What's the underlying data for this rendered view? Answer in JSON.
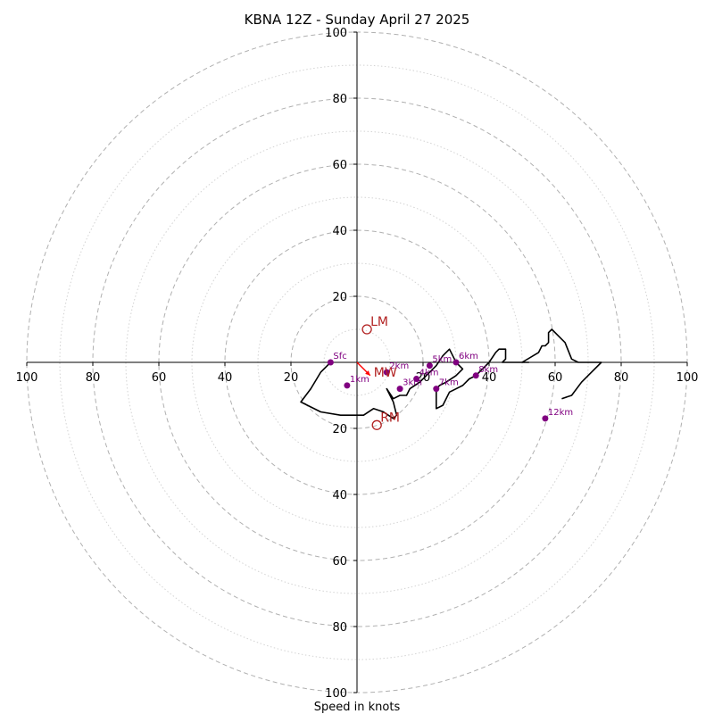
{
  "chart_data": {
    "type": "line",
    "title": "KBNA 12Z - Sunday April 27 2025",
    "xlabel": "Speed in knots",
    "ylabel": "",
    "xlim": [
      -100,
      100
    ],
    "ylim": [
      -100,
      100
    ],
    "grid": true,
    "rings": {
      "major": [
        20,
        40,
        60,
        80,
        100
      ],
      "minor": [
        10,
        30,
        50,
        70,
        90
      ]
    },
    "axis_ticks": {
      "x": [
        {
          "v": -100,
          "label": "100"
        },
        {
          "v": -80,
          "label": "80"
        },
        {
          "v": -60,
          "label": "60"
        },
        {
          "v": -40,
          "label": "40"
        },
        {
          "v": -20,
          "label": "20"
        },
        {
          "v": 20,
          "label": "20"
        },
        {
          "v": 40,
          "label": "40"
        },
        {
          "v": 60,
          "label": "60"
        },
        {
          "v": 80,
          "label": "80"
        },
        {
          "v": 100,
          "label": "100"
        }
      ],
      "y": [
        {
          "v": 100,
          "label": "100"
        },
        {
          "v": 80,
          "label": "80"
        },
        {
          "v": 60,
          "label": "60"
        },
        {
          "v": 40,
          "label": "40"
        },
        {
          "v": 20,
          "label": "20"
        },
        {
          "v": -20,
          "label": "20"
        },
        {
          "v": -40,
          "label": "40"
        },
        {
          "v": -60,
          "label": "60"
        },
        {
          "v": -80,
          "label": "80"
        },
        {
          "v": -100,
          "label": "100"
        }
      ]
    },
    "hodograph": {
      "color": "#000000",
      "points": [
        [
          -8,
          0
        ],
        [
          -11,
          -3
        ],
        [
          -14,
          -8
        ],
        [
          -17,
          -12
        ],
        [
          -15,
          -13
        ],
        [
          -11,
          -15
        ],
        [
          -5,
          -16
        ],
        [
          2,
          -16
        ],
        [
          5,
          -14
        ],
        [
          8,
          -15
        ],
        [
          11,
          -17
        ],
        [
          12,
          -16
        ],
        [
          11,
          -12
        ],
        [
          9,
          -8
        ],
        [
          11,
          -11
        ],
        [
          13,
          -10
        ],
        [
          15,
          -10
        ],
        [
          16,
          -8
        ],
        [
          19,
          -6
        ],
        [
          21,
          -4
        ],
        [
          22,
          -3
        ],
        [
          24,
          -1
        ],
        [
          26,
          2
        ],
        [
          28,
          4
        ],
        [
          30,
          0
        ],
        [
          32,
          -2
        ],
        [
          30,
          -4
        ],
        [
          27,
          -6
        ],
        [
          25,
          -7
        ],
        [
          24,
          -8
        ],
        [
          24,
          -13
        ],
        [
          24,
          -14
        ],
        [
          26,
          -13
        ],
        [
          28,
          -9
        ],
        [
          32,
          -7
        ],
        [
          34,
          -5
        ],
        [
          36,
          -4
        ],
        [
          38,
          -2
        ],
        [
          40,
          0
        ],
        [
          42,
          3
        ],
        [
          43,
          4
        ],
        [
          45,
          4
        ],
        [
          45,
          1
        ],
        [
          44,
          0
        ],
        [
          50,
          0
        ],
        [
          52,
          0
        ],
        [
          50,
          0
        ],
        [
          55,
          3
        ],
        [
          56,
          5
        ],
        [
          57,
          5
        ],
        [
          58,
          6
        ],
        [
          58,
          8
        ],
        [
          58,
          9
        ],
        [
          59,
          10
        ],
        [
          61,
          8
        ],
        [
          63,
          6
        ],
        [
          65,
          1
        ],
        [
          67,
          0
        ],
        [
          74,
          0
        ],
        [
          71,
          -3
        ],
        [
          68,
          -6
        ],
        [
          65,
          -10
        ],
        [
          62,
          -11
        ]
      ]
    },
    "levels": [
      {
        "label": "Sfc",
        "x": -8,
        "y": 0
      },
      {
        "label": "1km",
        "x": -3,
        "y": -7
      },
      {
        "label": "2km",
        "x": 9,
        "y": -3
      },
      {
        "label": "3km",
        "x": 13,
        "y": -8
      },
      {
        "label": "4km",
        "x": 18,
        "y": -5
      },
      {
        "label": "5km",
        "x": 22,
        "y": -1
      },
      {
        "label": "6km",
        "x": 30,
        "y": 0
      },
      {
        "label": "7km",
        "x": 24,
        "y": -8
      },
      {
        "label": "8km",
        "x": 36,
        "y": -4
      },
      {
        "label": "12km",
        "x": 57,
        "y": -17
      }
    ],
    "points_color": "#800080",
    "storm_motion": [
      {
        "label": "LM",
        "x": 3,
        "y": 10
      },
      {
        "label": "RM",
        "x": 6,
        "y": -19
      }
    ],
    "storm_motion_color": "#b22222",
    "mean_wind": {
      "label": "MW",
      "x": 4,
      "y": -4,
      "color": "#ff0000"
    }
  }
}
